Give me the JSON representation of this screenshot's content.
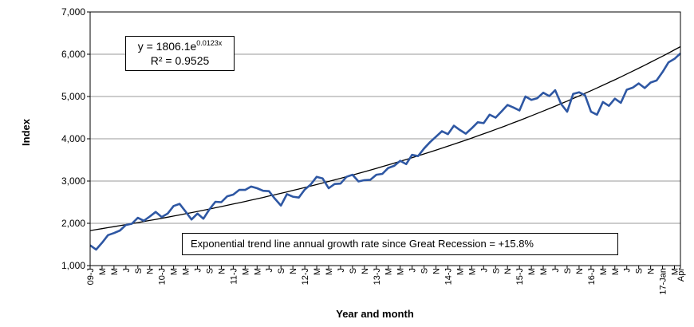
{
  "chart_data": {
    "type": "line",
    "xlabel": "Year and month",
    "ylabel": "Index",
    "ylim": [
      1000,
      7000
    ],
    "y_ticks": [
      "1,000",
      "2,000",
      "3,000",
      "4,000",
      "5,000",
      "6,000",
      "7,000"
    ],
    "x_tick_labels": [
      "09-J",
      "M",
      "M",
      "J",
      "S",
      "N",
      "10-J",
      "M",
      "M",
      "J",
      "S",
      "N",
      "11-J",
      "M",
      "M",
      "J",
      "S",
      "N",
      "12-J",
      "M",
      "M",
      "J",
      "S",
      "N",
      "13-J",
      "M",
      "M",
      "J",
      "S",
      "N",
      "14-J",
      "M",
      "M",
      "J",
      "S",
      "N",
      "15-J",
      "M",
      "M",
      "J",
      "S",
      "N",
      "16-J",
      "M",
      "M",
      "J",
      "S",
      "N",
      "17-Jan",
      "M",
      "Apr"
    ],
    "grid": "horizontal",
    "series": [
      {
        "color": "#2e57a3",
        "values": [
          1480,
          1380,
          1540,
          1720,
          1770,
          1830,
          1960,
          1990,
          2130,
          2060,
          2160,
          2270,
          2150,
          2230,
          2410,
          2460,
          2280,
          2090,
          2230,
          2110,
          2330,
          2510,
          2500,
          2640,
          2680,
          2790,
          2790,
          2870,
          2830,
          2770,
          2760,
          2580,
          2420,
          2690,
          2630,
          2610,
          2800,
          2920,
          3100,
          3060,
          2830,
          2930,
          2940,
          3100,
          3150,
          2990,
          3020,
          3030,
          3150,
          3170,
          3310,
          3360,
          3480,
          3400,
          3620,
          3590,
          3770,
          3920,
          4050,
          4180,
          4110,
          4310,
          4210,
          4120,
          4250,
          4390,
          4370,
          4570,
          4500,
          4650,
          4800,
          4740,
          4670,
          5000,
          4920,
          4960,
          5090,
          5010,
          5150,
          4820,
          4640,
          5060,
          5100,
          5030,
          4640,
          4570,
          4870,
          4780,
          4950,
          4850,
          5160,
          5210,
          5310,
          5200,
          5330,
          5380,
          5580,
          5810,
          5890,
          6020
        ]
      },
      {
        "type": "trend",
        "color": "#000000",
        "a": 1806.1,
        "b": 0.0123
      }
    ]
  },
  "equation": {
    "prefix": "y = 1806.1e",
    "exponent": "0.0123x",
    "r2": "R² = 0.9525"
  },
  "annotation": "Exponential trend line annual growth rate since Great Recession = +15.8%"
}
